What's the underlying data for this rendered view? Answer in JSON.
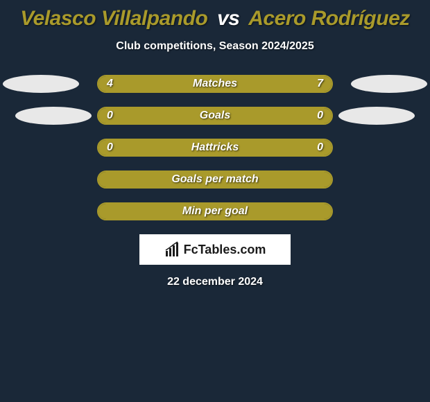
{
  "title": {
    "player1": "Velasco Villalpando",
    "vs": "vs",
    "player2": "Acero Rodríguez",
    "player1_color": "#a99a2b",
    "vs_color": "#ffffff",
    "player2_color": "#a99a2b"
  },
  "subtitle": "Club competitions, Season 2024/2025",
  "colors": {
    "background": "#1a2838",
    "bar_border": "#a99a2b",
    "bar_fill": "#a99a2b",
    "avatar_left_bg": "#e8e8e8",
    "avatar_right_bg": "#e8e8e8"
  },
  "avatars": {
    "show_on_rows": [
      0,
      1
    ],
    "left_offsets": [
      0,
      18
    ],
    "right_offsets": [
      0,
      18
    ]
  },
  "rows": [
    {
      "label": "Matches",
      "left_value": "4",
      "right_value": "7",
      "left_pct": 36.4,
      "right_pct": 63.6,
      "show_values": true
    },
    {
      "label": "Goals",
      "left_value": "0",
      "right_value": "0",
      "left_pct": 50,
      "right_pct": 50,
      "show_values": true
    },
    {
      "label": "Hattricks",
      "left_value": "0",
      "right_value": "0",
      "left_pct": 50,
      "right_pct": 50,
      "show_values": true
    },
    {
      "label": "Goals per match",
      "left_value": "",
      "right_value": "",
      "left_pct": 50,
      "right_pct": 50,
      "show_values": false
    },
    {
      "label": "Min per goal",
      "left_value": "",
      "right_value": "",
      "left_pct": 50,
      "right_pct": 50,
      "show_values": false
    }
  ],
  "branding": "FcTables.com",
  "date": "22 december 2024",
  "typography": {
    "title_fontsize": 30,
    "subtitle_fontsize": 16,
    "row_label_fontsize": 16
  }
}
